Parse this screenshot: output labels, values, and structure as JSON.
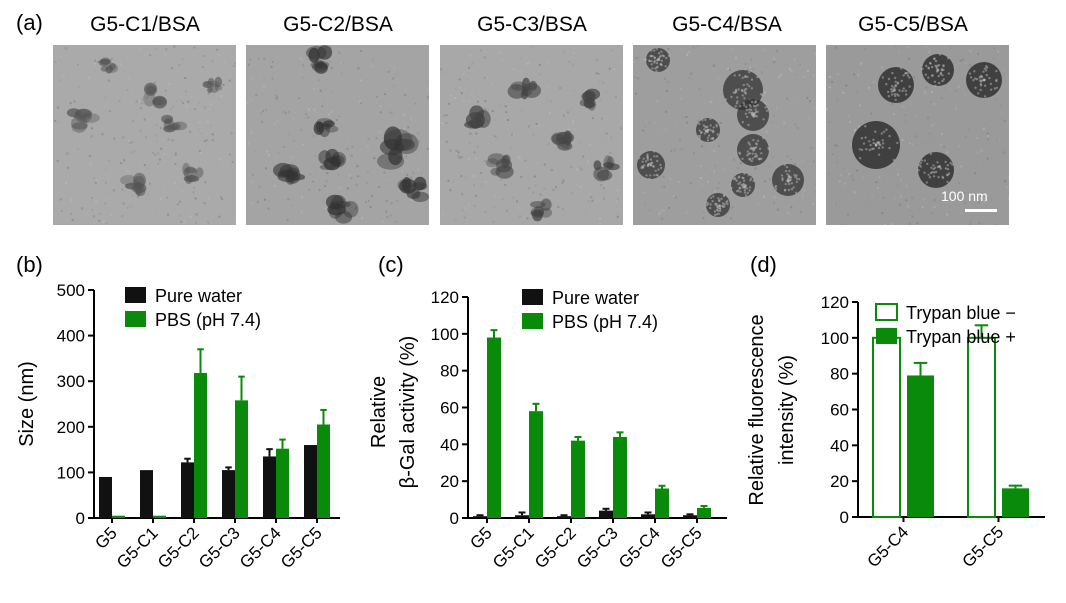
{
  "panels": {
    "a": "(a)",
    "b": "(b)",
    "c": "(c)",
    "d": "(d)"
  },
  "tem": {
    "titles": [
      "G5-C1/BSA",
      "G5-C2/BSA",
      "G5-C3/BSA",
      "G5-C4/BSA",
      "G5-C5/BSA"
    ],
    "scale_bar": "100 nm"
  },
  "colors": {
    "black": "#111111",
    "green": "#0a8a0a"
  },
  "chart_data": [
    {
      "id": "b",
      "type": "bar",
      "ylabel": "Size (nm)",
      "xlabel": "",
      "ylim": [
        0,
        500
      ],
      "yticks": [
        0,
        100,
        200,
        300,
        400,
        500
      ],
      "categories": [
        "G5",
        "G5-C1",
        "G5-C2",
        "G5-C3",
        "G5-C4",
        "G5-C5"
      ],
      "series": [
        {
          "name": "Pure water",
          "values": [
            90,
            105,
            122,
            105,
            135,
            160
          ],
          "errors": [
            0,
            0,
            8,
            6,
            16,
            0
          ],
          "color": "#111111",
          "fill": "solid"
        },
        {
          "name": "PBS (pH 7.4)",
          "values": [
            5,
            5,
            318,
            258,
            152,
            205
          ],
          "errors": [
            0,
            0,
            52,
            52,
            20,
            32
          ],
          "color": "#0a8a0a",
          "fill": "solid"
        }
      ],
      "legend": "top-left"
    },
    {
      "id": "c",
      "type": "bar",
      "ylabel": "β-Gal activity (%)",
      "ylabel2": "Relative",
      "xlabel": "",
      "ylim": [
        0,
        120
      ],
      "yticks": [
        0,
        20,
        40,
        60,
        80,
        100,
        120
      ],
      "categories": [
        "G5",
        "G5-C1",
        "G5-C2",
        "G5-C3",
        "G5-C4",
        "G5-C5"
      ],
      "series": [
        {
          "name": "Pure water",
          "values": [
            1,
            1.5,
            1,
            4,
            2,
            1.5
          ],
          "errors": [
            0.5,
            1.5,
            0.5,
            1,
            1,
            0.5
          ],
          "color": "#111111",
          "fill": "solid"
        },
        {
          "name": "PBS (pH 7.4)",
          "values": [
            98,
            58,
            42,
            44,
            16,
            5.5
          ],
          "errors": [
            4,
            4,
            2,
            2.5,
            1.5,
            1
          ],
          "color": "#0a8a0a",
          "fill": "solid"
        }
      ],
      "legend": "top-right"
    },
    {
      "id": "d",
      "type": "bar",
      "ylabel": "Relative fluorescence",
      "ylabel2": "intensity (%)",
      "xlabel": "",
      "ylim": [
        0,
        120
      ],
      "yticks": [
        0,
        20,
        40,
        60,
        80,
        100,
        120
      ],
      "categories": [
        "G5-C4",
        "G5-C5"
      ],
      "series": [
        {
          "name": "Trypan blue −",
          "values": [
            100,
            100
          ],
          "errors": [
            5,
            7
          ],
          "color": "#0a8a0a",
          "fill": "hollow"
        },
        {
          "name": "Trypan blue +",
          "values": [
            79,
            16
          ],
          "errors": [
            7,
            1.5
          ],
          "color": "#0a8a0a",
          "fill": "solid"
        }
      ],
      "legend": "top"
    }
  ]
}
